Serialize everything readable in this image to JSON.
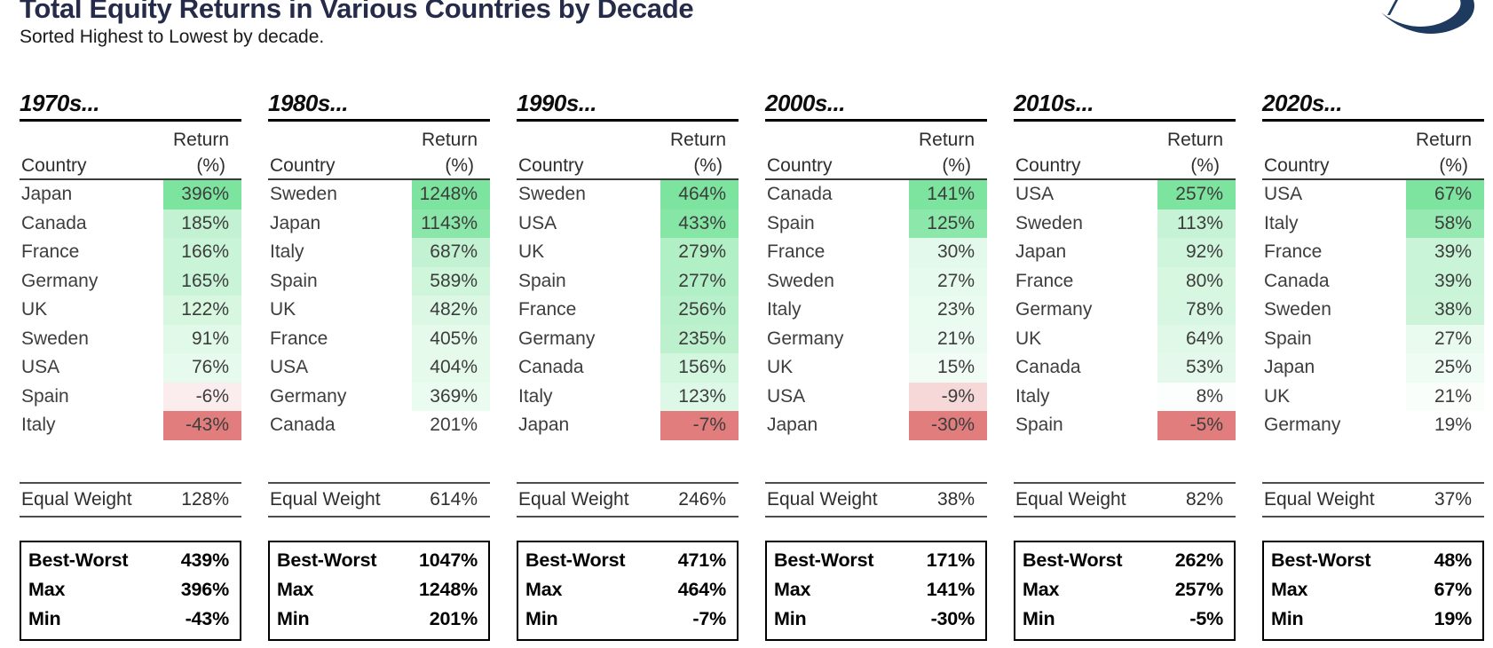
{
  "header": {
    "title": "Total Equity Returns in Various Countries by Decade",
    "subtitle": "Sorted Highest to Lowest by decade."
  },
  "logo": {
    "name": "swoosh-logo",
    "color": "#1e3a5f"
  },
  "table_labels": {
    "country": "Country",
    "return_line1": "Return",
    "return_line2": "(%)",
    "equal_weight": "Equal Weight",
    "best_worst": "Best-Worst",
    "max": "Max",
    "min": "Min"
  },
  "colors": {
    "title_navy": "#262b49",
    "body_text": "#3d3d3d",
    "cell_green_max": "#7de49f",
    "cell_red_min": "#e27d7d",
    "cell_neutral": "#ffffff"
  },
  "chart_data": {
    "type": "table",
    "title": "Total Equity Returns in Various Countries by Decade",
    "subtitle": "Sorted Highest to Lowest by decade.",
    "value_unit": "%",
    "shading": "per-decade color scale: strongest positive = green, negatives = red, low positives = white",
    "decades": [
      {
        "label": "1970s...",
        "decade": "1970s",
        "rows": [
          {
            "country": "Japan",
            "return_pct": 396
          },
          {
            "country": "Canada",
            "return_pct": 185
          },
          {
            "country": "France",
            "return_pct": 166
          },
          {
            "country": "Germany",
            "return_pct": 165
          },
          {
            "country": "UK",
            "return_pct": 122
          },
          {
            "country": "Sweden",
            "return_pct": 91
          },
          {
            "country": "USA",
            "return_pct": 76
          },
          {
            "country": "Spain",
            "return_pct": -6
          },
          {
            "country": "Italy",
            "return_pct": -43
          }
        ],
        "equal_weight_pct": 128,
        "summary": {
          "best_worst_pct": 439,
          "max_pct": 396,
          "min_pct": -43
        }
      },
      {
        "label": "1980s...",
        "decade": "1980s",
        "rows": [
          {
            "country": "Sweden",
            "return_pct": 1248
          },
          {
            "country": "Japan",
            "return_pct": 1143
          },
          {
            "country": "Italy",
            "return_pct": 687
          },
          {
            "country": "Spain",
            "return_pct": 589
          },
          {
            "country": "UK",
            "return_pct": 482
          },
          {
            "country": "France",
            "return_pct": 405
          },
          {
            "country": "USA",
            "return_pct": 404
          },
          {
            "country": "Germany",
            "return_pct": 369
          },
          {
            "country": "Canada",
            "return_pct": 201
          }
        ],
        "equal_weight_pct": 614,
        "summary": {
          "best_worst_pct": 1047,
          "max_pct": 1248,
          "min_pct": 201
        }
      },
      {
        "label": "1990s...",
        "decade": "1990s",
        "rows": [
          {
            "country": "Sweden",
            "return_pct": 464
          },
          {
            "country": "USA",
            "return_pct": 433
          },
          {
            "country": "UK",
            "return_pct": 279
          },
          {
            "country": "Spain",
            "return_pct": 277
          },
          {
            "country": "France",
            "return_pct": 256
          },
          {
            "country": "Germany",
            "return_pct": 235
          },
          {
            "country": "Canada",
            "return_pct": 156
          },
          {
            "country": "Italy",
            "return_pct": 123
          },
          {
            "country": "Japan",
            "return_pct": -7
          }
        ],
        "equal_weight_pct": 246,
        "summary": {
          "best_worst_pct": 471,
          "max_pct": 464,
          "min_pct": -7
        }
      },
      {
        "label": "2000s...",
        "decade": "2000s",
        "rows": [
          {
            "country": "Canada",
            "return_pct": 141
          },
          {
            "country": "Spain",
            "return_pct": 125
          },
          {
            "country": "France",
            "return_pct": 30
          },
          {
            "country": "Sweden",
            "return_pct": 27
          },
          {
            "country": "Italy",
            "return_pct": 23
          },
          {
            "country": "Germany",
            "return_pct": 21
          },
          {
            "country": "UK",
            "return_pct": 15
          },
          {
            "country": "USA",
            "return_pct": -9
          },
          {
            "country": "Japan",
            "return_pct": -30
          }
        ],
        "equal_weight_pct": 38,
        "summary": {
          "best_worst_pct": 171,
          "max_pct": 141,
          "min_pct": -30
        }
      },
      {
        "label": "2010s...",
        "decade": "2010s",
        "rows": [
          {
            "country": "USA",
            "return_pct": 257
          },
          {
            "country": "Sweden",
            "return_pct": 113
          },
          {
            "country": "Japan",
            "return_pct": 92
          },
          {
            "country": "France",
            "return_pct": 80
          },
          {
            "country": "Germany",
            "return_pct": 78
          },
          {
            "country": "UK",
            "return_pct": 64
          },
          {
            "country": "Canada",
            "return_pct": 53
          },
          {
            "country": "Italy",
            "return_pct": 8
          },
          {
            "country": "Spain",
            "return_pct": -5
          }
        ],
        "equal_weight_pct": 82,
        "summary": {
          "best_worst_pct": 262,
          "max_pct": 257,
          "min_pct": -5
        }
      },
      {
        "label": "2020s...",
        "decade": "2020s",
        "rows": [
          {
            "country": "USA",
            "return_pct": 67
          },
          {
            "country": "Italy",
            "return_pct": 58
          },
          {
            "country": "France",
            "return_pct": 39
          },
          {
            "country": "Canada",
            "return_pct": 39
          },
          {
            "country": "Sweden",
            "return_pct": 38
          },
          {
            "country": "Spain",
            "return_pct": 27
          },
          {
            "country": "Japan",
            "return_pct": 25
          },
          {
            "country": "UK",
            "return_pct": 21
          },
          {
            "country": "Germany",
            "return_pct": 19
          }
        ],
        "equal_weight_pct": 37,
        "summary": {
          "best_worst_pct": 48,
          "max_pct": 67,
          "min_pct": 19
        }
      }
    ]
  }
}
